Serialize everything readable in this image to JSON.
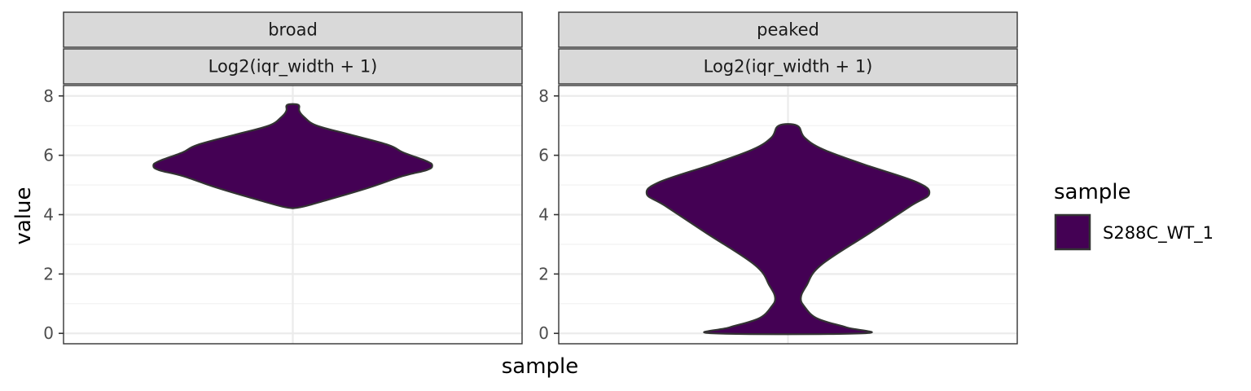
{
  "chart_data": {
    "type": "violin",
    "xlabel": "sample",
    "ylabel": "value",
    "ylim": [
      -0.35,
      8.35
    ],
    "yticks": [
      0,
      2,
      4,
      6,
      8
    ],
    "yticks_labels": [
      "0",
      "2",
      "4",
      "6",
      "8"
    ],
    "grid": true,
    "legend_placement": "right",
    "legend": {
      "title": "sample",
      "items": [
        {
          "label": "S288C_WT_1",
          "color": "#440154"
        }
      ]
    },
    "facets": [
      {
        "strip": [
          "broad",
          "Log2(iqr_width + 1)"
        ],
        "series_name": "S288C_WT_1",
        "color": "#440154",
        "profile": [
          [
            4.25,
            0.04
          ],
          [
            4.5,
            0.19
          ],
          [
            4.9,
            0.41
          ],
          [
            5.3,
            0.6
          ],
          [
            5.5,
            0.73
          ],
          [
            5.65,
            0.76
          ],
          [
            5.8,
            0.73
          ],
          [
            6.1,
            0.6
          ],
          [
            6.35,
            0.52
          ],
          [
            6.7,
            0.31
          ],
          [
            7.0,
            0.13
          ],
          [
            7.3,
            0.06
          ],
          [
            7.5,
            0.035
          ],
          [
            7.7,
            0.03
          ]
        ]
      },
      {
        "strip": [
          "peaked",
          "Log2(iqr_width + 1)"
        ],
        "series_name": "S288C_WT_1",
        "color": "#440154",
        "profile": [
          [
            0.0,
            0.41
          ],
          [
            0.2,
            0.32
          ],
          [
            0.5,
            0.16
          ],
          [
            0.9,
            0.09
          ],
          [
            1.2,
            0.07
          ],
          [
            1.6,
            0.1
          ],
          [
            2.3,
            0.18
          ],
          [
            3.4,
            0.45
          ],
          [
            4.3,
            0.67
          ],
          [
            4.7,
            0.77
          ],
          [
            5.1,
            0.7
          ],
          [
            5.7,
            0.41
          ],
          [
            6.2,
            0.19
          ],
          [
            6.6,
            0.09
          ],
          [
            7.0,
            0.05
          ]
        ]
      }
    ]
  }
}
